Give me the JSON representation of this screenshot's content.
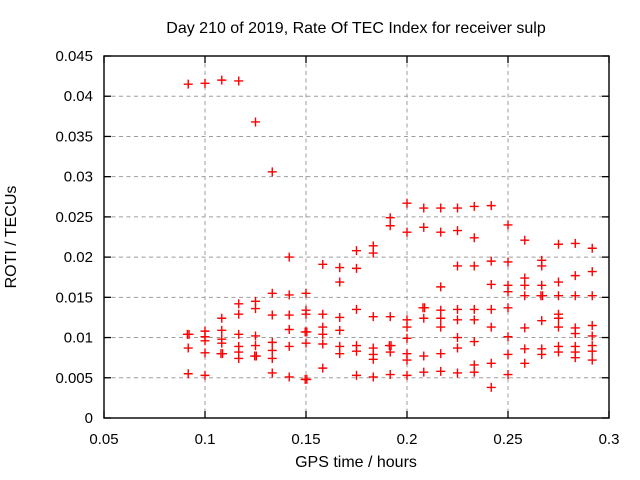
{
  "chart_data": {
    "type": "scatter",
    "title": "Day 210 of 2019, Rate Of TEC Index for receiver sulp",
    "xlabel": "GPS time / hours",
    "ylabel": "ROTI / TECUs",
    "xlim": [
      0.05,
      0.3
    ],
    "ylim": [
      0,
      0.045
    ],
    "grid": true,
    "legend": "none",
    "x_ticks": {
      "values": [
        0.05,
        0.1,
        0.15,
        0.2,
        0.25,
        0.3
      ],
      "labels": [
        "0.05",
        "0.1",
        "0.15",
        "0.2",
        "0.25",
        "0.3"
      ]
    },
    "y_ticks": {
      "values": [
        0,
        0.005,
        0.01,
        0.015,
        0.02,
        0.025,
        0.03,
        0.035,
        0.04,
        0.045
      ],
      "labels": [
        "0",
        "0.005",
        "0.01",
        "0.015",
        "0.02",
        "0.025",
        "0.03",
        "0.035",
        "0.04",
        "0.045"
      ]
    },
    "marker": {
      "shape": "plus",
      "color": "#ff0000",
      "size": 9,
      "stroke_width": 1.4
    },
    "colors": {
      "marker": "#ff0000",
      "grid": "#9e9e9e",
      "frame": "#000000",
      "text": "#000000",
      "background": "#ffffff"
    },
    "series_name": "ROTI",
    "points": [
      [
        0.0917,
        0.0415
      ],
      [
        0.0913,
        0.0104
      ],
      [
        0.0921,
        0.0104
      ],
      [
        0.0917,
        0.0087
      ],
      [
        0.0917,
        0.0055
      ],
      [
        0.1,
        0.0416
      ],
      [
        0.1,
        0.0108
      ],
      [
        0.1,
        0.0101
      ],
      [
        0.1,
        0.0096
      ],
      [
        0.1,
        0.0081
      ],
      [
        0.1,
        0.0053
      ],
      [
        0.1083,
        0.042
      ],
      [
        0.1083,
        0.0124
      ],
      [
        0.1083,
        0.0109
      ],
      [
        0.1083,
        0.0098
      ],
      [
        0.1083,
        0.0093
      ],
      [
        0.1079,
        0.008
      ],
      [
        0.1087,
        0.008
      ],
      [
        0.1167,
        0.0419
      ],
      [
        0.1167,
        0.0142
      ],
      [
        0.1167,
        0.0129
      ],
      [
        0.1167,
        0.0104
      ],
      [
        0.1167,
        0.0089
      ],
      [
        0.1167,
        0.0082
      ],
      [
        0.1167,
        0.0074
      ],
      [
        0.125,
        0.0368
      ],
      [
        0.125,
        0.0145
      ],
      [
        0.125,
        0.0136
      ],
      [
        0.125,
        0.0102
      ],
      [
        0.125,
        0.009
      ],
      [
        0.1246,
        0.0077
      ],
      [
        0.1254,
        0.0077
      ],
      [
        0.1333,
        0.0306
      ],
      [
        0.1333,
        0.0155
      ],
      [
        0.1333,
        0.0128
      ],
      [
        0.1333,
        0.0094
      ],
      [
        0.1333,
        0.0084
      ],
      [
        0.1333,
        0.0074
      ],
      [
        0.1333,
        0.0056
      ],
      [
        0.1417,
        0.02
      ],
      [
        0.1417,
        0.0153
      ],
      [
        0.1417,
        0.0128
      ],
      [
        0.1417,
        0.011
      ],
      [
        0.1417,
        0.0089
      ],
      [
        0.1417,
        0.0051
      ],
      [
        0.15,
        0.0155
      ],
      [
        0.15,
        0.0134
      ],
      [
        0.15,
        0.0129
      ],
      [
        0.1496,
        0.0107
      ],
      [
        0.1504,
        0.0107
      ],
      [
        0.15,
        0.0093
      ],
      [
        0.1496,
        0.0048
      ],
      [
        0.1504,
        0.0048
      ],
      [
        0.1583,
        0.0191
      ],
      [
        0.1583,
        0.0129
      ],
      [
        0.1583,
        0.0113
      ],
      [
        0.1583,
        0.0104
      ],
      [
        0.1583,
        0.0092
      ],
      [
        0.1583,
        0.0062
      ],
      [
        0.1667,
        0.0187
      ],
      [
        0.1667,
        0.0169
      ],
      [
        0.1667,
        0.0125
      ],
      [
        0.1667,
        0.0109
      ],
      [
        0.1667,
        0.0089
      ],
      [
        0.1667,
        0.008
      ],
      [
        0.175,
        0.0208
      ],
      [
        0.175,
        0.0186
      ],
      [
        0.175,
        0.0135
      ],
      [
        0.175,
        0.009
      ],
      [
        0.175,
        0.0083
      ],
      [
        0.175,
        0.0053
      ],
      [
        0.1833,
        0.0214
      ],
      [
        0.1833,
        0.0205
      ],
      [
        0.1833,
        0.0126
      ],
      [
        0.1833,
        0.0087
      ],
      [
        0.1833,
        0.0079
      ],
      [
        0.1833,
        0.0073
      ],
      [
        0.1833,
        0.0051
      ],
      [
        0.1917,
        0.0249
      ],
      [
        0.1917,
        0.0239
      ],
      [
        0.1917,
        0.0126
      ],
      [
        0.1913,
        0.009
      ],
      [
        0.1921,
        0.009
      ],
      [
        0.1917,
        0.0082
      ],
      [
        0.1917,
        0.0054
      ],
      [
        0.2,
        0.0267
      ],
      [
        0.2,
        0.0231
      ],
      [
        0.2,
        0.0122
      ],
      [
        0.2,
        0.0113
      ],
      [
        0.2,
        0.0099
      ],
      [
        0.2,
        0.008
      ],
      [
        0.2,
        0.0072
      ],
      [
        0.2,
        0.0053
      ],
      [
        0.2083,
        0.0261
      ],
      [
        0.2083,
        0.0237
      ],
      [
        0.2079,
        0.0137
      ],
      [
        0.2087,
        0.0137
      ],
      [
        0.2083,
        0.0124
      ],
      [
        0.2083,
        0.0077
      ],
      [
        0.2083,
        0.0057
      ],
      [
        0.2167,
        0.0261
      ],
      [
        0.2167,
        0.0231
      ],
      [
        0.2167,
        0.0163
      ],
      [
        0.2167,
        0.0134
      ],
      [
        0.2167,
        0.0124
      ],
      [
        0.2167,
        0.0113
      ],
      [
        0.2167,
        0.008
      ],
      [
        0.2167,
        0.0058
      ],
      [
        0.225,
        0.0261
      ],
      [
        0.225,
        0.0233
      ],
      [
        0.225,
        0.0189
      ],
      [
        0.225,
        0.0135
      ],
      [
        0.225,
        0.0122
      ],
      [
        0.225,
        0.01
      ],
      [
        0.225,
        0.0087
      ],
      [
        0.225,
        0.0056
      ],
      [
        0.2333,
        0.0263
      ],
      [
        0.2333,
        0.0224
      ],
      [
        0.2333,
        0.0189
      ],
      [
        0.2333,
        0.0135
      ],
      [
        0.2333,
        0.0122
      ],
      [
        0.2333,
        0.0095
      ],
      [
        0.2333,
        0.0066
      ],
      [
        0.2333,
        0.0057
      ],
      [
        0.2417,
        0.0264
      ],
      [
        0.2417,
        0.0195
      ],
      [
        0.2417,
        0.0166
      ],
      [
        0.2417,
        0.0135
      ],
      [
        0.2417,
        0.0113
      ],
      [
        0.2417,
        0.0068
      ],
      [
        0.2417,
        0.0038
      ],
      [
        0.25,
        0.024
      ],
      [
        0.25,
        0.0194
      ],
      [
        0.25,
        0.0165
      ],
      [
        0.25,
        0.0157
      ],
      [
        0.25,
        0.0137
      ],
      [
        0.25,
        0.0101
      ],
      [
        0.25,
        0.0079
      ],
      [
        0.25,
        0.0054
      ],
      [
        0.2583,
        0.0221
      ],
      [
        0.2583,
        0.0174
      ],
      [
        0.2583,
        0.0165
      ],
      [
        0.2583,
        0.0152
      ],
      [
        0.2583,
        0.0112
      ],
      [
        0.2583,
        0.0086
      ],
      [
        0.2583,
        0.0068
      ],
      [
        0.2667,
        0.0196
      ],
      [
        0.2667,
        0.0189
      ],
      [
        0.2667,
        0.0165
      ],
      [
        0.2663,
        0.0152
      ],
      [
        0.2671,
        0.0152
      ],
      [
        0.2667,
        0.0121
      ],
      [
        0.2667,
        0.0086
      ],
      [
        0.2667,
        0.0079
      ],
      [
        0.275,
        0.0216
      ],
      [
        0.275,
        0.0169
      ],
      [
        0.275,
        0.0152
      ],
      [
        0.275,
        0.0129
      ],
      [
        0.275,
        0.0124
      ],
      [
        0.275,
        0.0113
      ],
      [
        0.275,
        0.0089
      ],
      [
        0.275,
        0.0082
      ],
      [
        0.2833,
        0.0217
      ],
      [
        0.2833,
        0.0177
      ],
      [
        0.2833,
        0.0152
      ],
      [
        0.2833,
        0.0112
      ],
      [
        0.2833,
        0.0105
      ],
      [
        0.2833,
        0.0089
      ],
      [
        0.2833,
        0.0082
      ],
      [
        0.2833,
        0.0075
      ],
      [
        0.2917,
        0.0211
      ],
      [
        0.2917,
        0.0182
      ],
      [
        0.2917,
        0.0152
      ],
      [
        0.2917,
        0.0115
      ],
      [
        0.2917,
        0.0102
      ],
      [
        0.2917,
        0.009
      ],
      [
        0.2917,
        0.0083
      ],
      [
        0.2917,
        0.0072
      ]
    ]
  }
}
